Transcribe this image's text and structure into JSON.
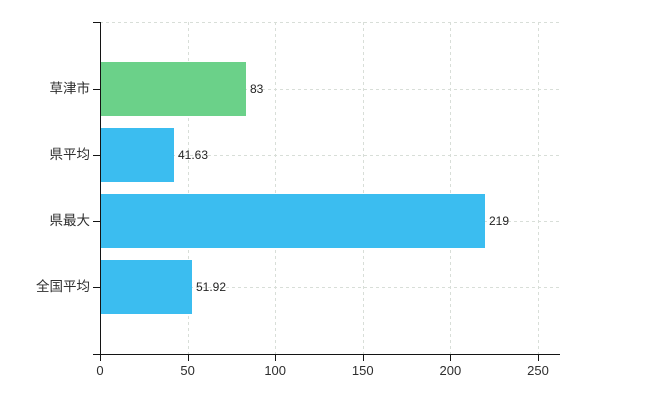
{
  "chart_data": {
    "type": "bar",
    "orientation": "horizontal",
    "title": "",
    "xlabel": "",
    "ylabel": "",
    "categories": [
      "草津市",
      "県平均",
      "県最大",
      "全国平均"
    ],
    "values": [
      83,
      41.63,
      219,
      51.92
    ],
    "value_labels": [
      "83",
      "41.63",
      "219",
      "51.92"
    ],
    "bar_colors": [
      "#6bd189",
      "#3bbdf0",
      "#3bbdf0",
      "#3bbdf0"
    ],
    "x_ticks": [
      "0",
      "50",
      "100",
      "150",
      "200",
      "250"
    ],
    "x_tick_values": [
      0,
      50,
      100,
      150,
      200,
      250
    ],
    "xlim": [
      0,
      262
    ],
    "grid": true,
    "legend": "none",
    "colors": {
      "highlight_bar": "#6bd189",
      "default_bar": "#3bbdf0",
      "gridline": "#d8ded8",
      "axis": "#141414",
      "text": "#2e2e2e"
    }
  }
}
